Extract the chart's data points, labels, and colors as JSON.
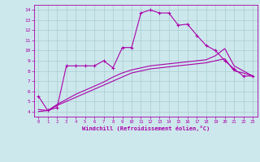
{
  "bg_color": "#cce8ec",
  "grid_color": "#aaccd0",
  "line_color": "#aa00aa",
  "xlabel": "Windchill (Refroidissement éolien,°C)",
  "xlim": [
    -0.5,
    23.5
  ],
  "ylim": [
    3.5,
    14.5
  ],
  "yticks": [
    4,
    5,
    6,
    7,
    8,
    9,
    10,
    11,
    12,
    13,
    14
  ],
  "xticks": [
    0,
    1,
    2,
    3,
    4,
    5,
    6,
    7,
    8,
    9,
    10,
    11,
    12,
    13,
    14,
    15,
    16,
    17,
    18,
    19,
    20,
    21,
    22,
    23
  ],
  "line1_x": [
    0,
    1,
    2,
    3,
    4,
    5,
    6,
    7,
    8,
    9,
    10,
    11,
    12,
    13,
    14,
    15,
    16,
    17,
    18,
    19,
    20,
    21,
    22,
    23
  ],
  "line1_y": [
    5.5,
    4.1,
    4.4,
    8.5,
    8.5,
    8.5,
    8.5,
    9.0,
    8.3,
    10.3,
    10.3,
    13.7,
    14.0,
    13.7,
    13.7,
    12.5,
    12.6,
    11.5,
    10.5,
    10.0,
    9.0,
    8.2,
    7.5,
    7.5
  ],
  "line2_x": [
    0,
    1,
    2,
    3,
    4,
    5,
    6,
    7,
    8,
    9,
    10,
    11,
    12,
    13,
    14,
    15,
    16,
    17,
    18,
    19,
    20,
    21,
    22,
    23
  ],
  "line2_y": [
    4.2,
    4.1,
    4.6,
    5.0,
    5.4,
    5.8,
    6.2,
    6.6,
    7.0,
    7.4,
    7.8,
    8.0,
    8.2,
    8.3,
    8.4,
    8.5,
    8.6,
    8.7,
    8.8,
    9.0,
    9.2,
    8.0,
    7.8,
    7.5
  ],
  "line3_x": [
    0,
    1,
    2,
    3,
    4,
    5,
    6,
    7,
    8,
    9,
    10,
    11,
    12,
    13,
    14,
    15,
    16,
    17,
    18,
    19,
    20,
    21,
    22,
    23
  ],
  "line3_y": [
    4.0,
    4.1,
    4.7,
    5.2,
    5.7,
    6.1,
    6.5,
    6.9,
    7.4,
    7.8,
    8.1,
    8.3,
    8.5,
    8.6,
    8.7,
    8.8,
    8.9,
    9.0,
    9.1,
    9.5,
    10.2,
    8.5,
    8.0,
    7.5
  ]
}
